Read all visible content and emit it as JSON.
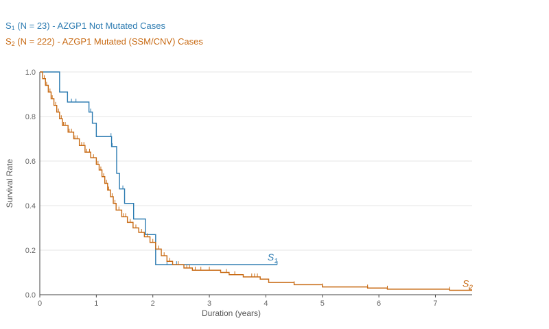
{
  "legend": {
    "s1": {
      "prefix": "S",
      "sub": "1",
      "text": " (N = 23) - AZGP1 Not Mutated Cases"
    },
    "s2": {
      "prefix": "S",
      "sub": "2",
      "text": " (N = 222) - AZGP1 Mutated (SSM/CNV) Cases"
    }
  },
  "chart_data": {
    "type": "line",
    "xlabel": "Duration (years)",
    "ylabel": "Survival Rate",
    "xlim": [
      0,
      7.65
    ],
    "ylim": [
      0,
      1.0
    ],
    "xticks": [
      0,
      1,
      2,
      3,
      4,
      5,
      6,
      7
    ],
    "yticks": [
      "0.0",
      "0.2",
      "0.4",
      "0.6",
      "0.8",
      "1.0"
    ],
    "grid": true,
    "series": [
      {
        "name": "S1",
        "label_prefix": "S",
        "label_sub": "1",
        "color": "#2c7bb1",
        "steps": [
          [
            0,
            1.0
          ],
          [
            0.35,
            0.91
          ],
          [
            0.49,
            0.865
          ],
          [
            0.87,
            0.82
          ],
          [
            0.93,
            0.77
          ],
          [
            1.0,
            0.71
          ],
          [
            1.27,
            0.665
          ],
          [
            1.36,
            0.545
          ],
          [
            1.41,
            0.475
          ],
          [
            1.5,
            0.41
          ],
          [
            1.66,
            0.34
          ],
          [
            1.87,
            0.27
          ],
          [
            2.05,
            0.135
          ],
          [
            4.2,
            0.135
          ]
        ],
        "censor": [
          0.35,
          0.56,
          0.64,
          0.9,
          1.26,
          1.28,
          1.47,
          2.25,
          2.42,
          4.2
        ]
      },
      {
        "name": "S2",
        "label_prefix": "S",
        "label_sub": "2",
        "color": "#c86a13",
        "steps": [
          [
            0,
            1.0
          ],
          [
            0.05,
            0.97
          ],
          [
            0.1,
            0.94
          ],
          [
            0.15,
            0.91
          ],
          [
            0.2,
            0.88
          ],
          [
            0.25,
            0.85
          ],
          [
            0.3,
            0.82
          ],
          [
            0.35,
            0.79
          ],
          [
            0.4,
            0.76
          ],
          [
            0.5,
            0.73
          ],
          [
            0.6,
            0.7
          ],
          [
            0.7,
            0.67
          ],
          [
            0.8,
            0.64
          ],
          [
            0.9,
            0.615
          ],
          [
            1.0,
            0.585
          ],
          [
            1.05,
            0.56
          ],
          [
            1.1,
            0.53
          ],
          [
            1.15,
            0.5
          ],
          [
            1.2,
            0.47
          ],
          [
            1.25,
            0.44
          ],
          [
            1.3,
            0.41
          ],
          [
            1.35,
            0.38
          ],
          [
            1.45,
            0.35
          ],
          [
            1.55,
            0.325
          ],
          [
            1.65,
            0.3
          ],
          [
            1.75,
            0.28
          ],
          [
            1.85,
            0.26
          ],
          [
            1.95,
            0.235
          ],
          [
            2.05,
            0.205
          ],
          [
            2.15,
            0.175
          ],
          [
            2.25,
            0.15
          ],
          [
            2.35,
            0.135
          ],
          [
            2.55,
            0.12
          ],
          [
            2.7,
            0.11
          ],
          [
            3.2,
            0.1
          ],
          [
            3.35,
            0.09
          ],
          [
            3.6,
            0.08
          ],
          [
            3.9,
            0.07
          ],
          [
            4.05,
            0.055
          ],
          [
            4.5,
            0.045
          ],
          [
            5.0,
            0.035
          ],
          [
            5.8,
            0.03
          ],
          [
            6.15,
            0.025
          ],
          [
            7.25,
            0.02
          ],
          [
            7.65,
            0.02
          ]
        ],
        "censor": [
          0.08,
          0.12,
          0.18,
          0.22,
          0.28,
          0.33,
          0.38,
          0.42,
          0.45,
          0.52,
          0.56,
          0.62,
          0.66,
          0.74,
          0.78,
          0.83,
          0.88,
          0.95,
          1.03,
          1.08,
          1.13,
          1.18,
          1.22,
          1.28,
          1.33,
          1.4,
          1.48,
          1.52,
          1.6,
          1.7,
          1.8,
          1.9,
          2.0,
          2.1,
          2.2,
          2.3,
          2.45,
          2.6,
          2.65,
          2.75,
          2.85,
          3.0,
          3.3,
          3.45,
          3.75,
          3.8,
          3.85,
          4.5,
          5.0,
          5.8,
          6.15,
          7.25,
          7.6
        ]
      }
    ]
  }
}
